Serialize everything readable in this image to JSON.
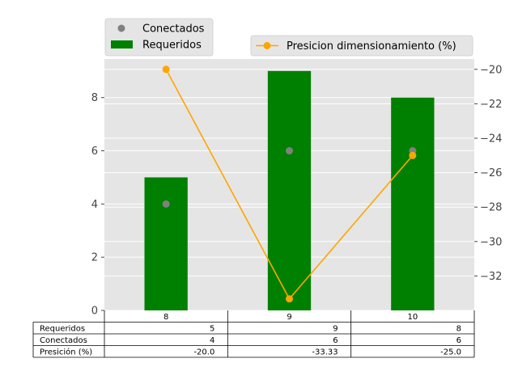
{
  "chart_data": {
    "type": "bar",
    "categories": [
      "8",
      "9",
      "10"
    ],
    "series": [
      {
        "name": "Requeridos",
        "kind": "bar",
        "axis": "left",
        "values": [
          5,
          9,
          8
        ],
        "color": "#008000"
      },
      {
        "name": "Conectados",
        "kind": "scatter",
        "axis": "left",
        "values": [
          4,
          6,
          6
        ],
        "color": "#808080"
      },
      {
        "name": "Presicion dimensionamiento (%)",
        "kind": "line",
        "axis": "right",
        "values": [
          -20.0,
          -33.33,
          -25.0
        ],
        "color": "#ffa500"
      }
    ],
    "ylim_left": [
      0,
      9.45
    ],
    "ylim_right": [
      -34.0,
      -19.4
    ],
    "yticks_left": [
      "0",
      "2",
      "4",
      "6",
      "8"
    ],
    "yticks_right": [
      "−32",
      "−30",
      "−28",
      "−26",
      "−24",
      "−22",
      "−20"
    ],
    "grid": true,
    "background_color": "#e5e5e5",
    "legends": [
      {
        "placement": "top-left (outside)",
        "entries": [
          "Conectados",
          "Requeridos"
        ]
      },
      {
        "placement": "top-right (outside)",
        "entries": [
          "Presicion dimensionamiento (%)"
        ]
      }
    ],
    "table": {
      "col_labels": [
        "8",
        "9",
        "10"
      ],
      "rows": [
        {
          "label": "Requeridos",
          "cells": [
            "5",
            "9",
            "8"
          ]
        },
        {
          "label": "Conectados",
          "cells": [
            "4",
            "6",
            "6"
          ]
        },
        {
          "label": "Presición (%)",
          "cells": [
            "-20.0",
            "-33.33",
            "-25.0"
          ]
        }
      ]
    }
  }
}
